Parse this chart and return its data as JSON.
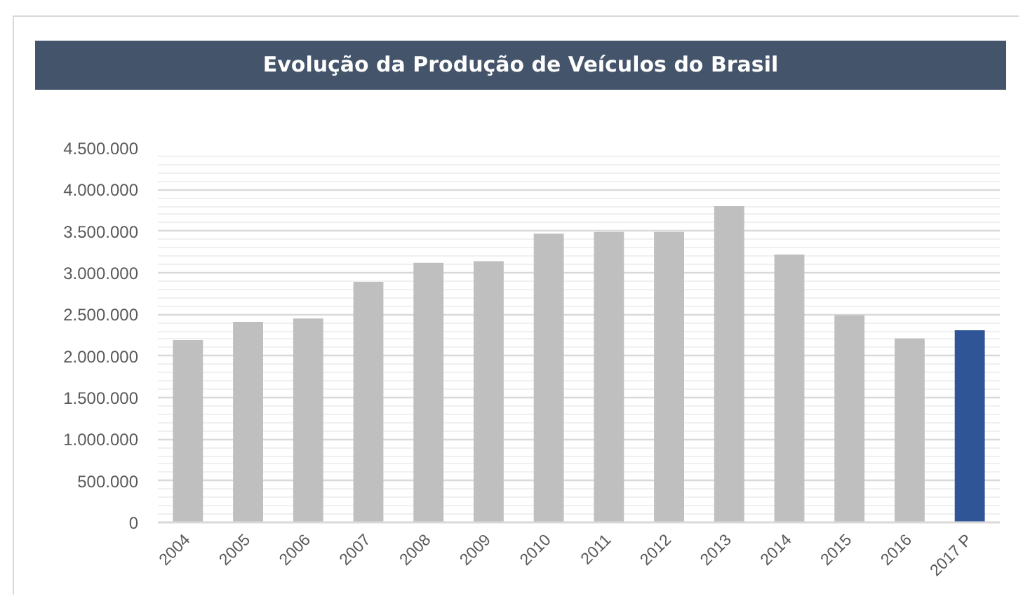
{
  "chart_data": {
    "type": "bar",
    "title": "Evolução da Produção de Veículos do Brasil",
    "categories": [
      "2004",
      "2005",
      "2006",
      "2007",
      "2008",
      "2009",
      "2010",
      "2011",
      "2012",
      "2013",
      "2014",
      "2015",
      "2016",
      "2017 P"
    ],
    "values": [
      2190000,
      2410000,
      2450000,
      2890000,
      3120000,
      3140000,
      3470000,
      3490000,
      3490000,
      3800000,
      3220000,
      2490000,
      2210000,
      2310000
    ],
    "colors": [
      "#bfbfbf",
      "#bfbfbf",
      "#bfbfbf",
      "#bfbfbf",
      "#bfbfbf",
      "#bfbfbf",
      "#bfbfbf",
      "#bfbfbf",
      "#bfbfbf",
      "#bfbfbf",
      "#bfbfbf",
      "#bfbfbf",
      "#bfbfbf",
      "#2f5597"
    ],
    "ylim": [
      0,
      4500000
    ],
    "yticks": [
      0,
      {
        "value": 500000,
        "label": "500.000"
      },
      {
        "value": 1000000,
        "label": "1.000.000"
      },
      {
        "value": 1500000,
        "label": "1.500.000"
      },
      {
        "value": 2000000,
        "label": "2.000.000"
      },
      {
        "value": 2500000,
        "label": "2.500.000"
      },
      {
        "value": 3000000,
        "label": "3.000.000"
      },
      {
        "value": 3500000,
        "label": "3.500.000"
      },
      {
        "value": 4000000,
        "label": "4.000.000"
      },
      {
        "value": 4500000,
        "label": "4.500.000"
      }
    ],
    "grid": "y"
  }
}
